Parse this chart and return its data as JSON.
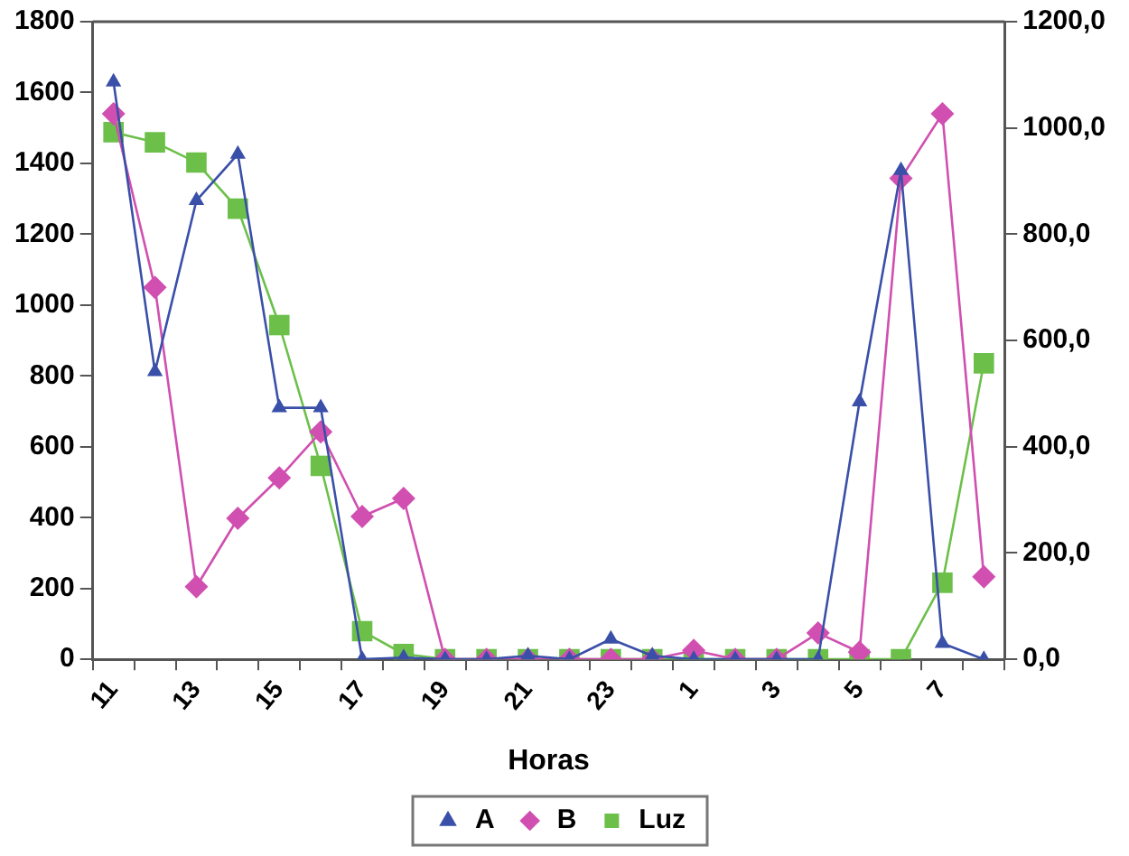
{
  "chart_data": {
    "type": "line",
    "xlabel": "Horas",
    "categories": [
      "11",
      null,
      "13",
      null,
      "15",
      null,
      "17",
      null,
      "19",
      null,
      "21",
      null,
      "23",
      null,
      "1",
      null,
      "3",
      null,
      "5",
      null,
      "7",
      null
    ],
    "series": [
      {
        "name": "A",
        "color": "#3a4fa8",
        "marker": "triangle",
        "values": [
          1630,
          812,
          1295,
          1426,
          710,
          710,
          0,
          5,
          0,
          0,
          10,
          0,
          57,
          10,
          0,
          0,
          0,
          0,
          727,
          1380,
          45,
          0
        ]
      },
      {
        "name": "B",
        "color": "#d04fb0",
        "marker": "diamond",
        "values": [
          1540,
          1050,
          205,
          398,
          512,
          642,
          403,
          454,
          0,
          0,
          0,
          0,
          0,
          0,
          25,
          0,
          0,
          74,
          20,
          1358,
          1540,
          233
        ]
      },
      {
        "name": "Luz",
        "color": "#6cc04a",
        "marker": "square",
        "axis": "y2",
        "values": [
          992,
          973,
          935,
          848,
          629,
          364,
          53,
          10,
          0,
          0,
          0,
          0,
          0,
          0,
          0,
          0,
          0,
          0,
          0,
          0,
          144,
          557
        ]
      }
    ],
    "ylim": [
      0,
      1800
    ],
    "yticks": [
      0,
      200,
      400,
      600,
      800,
      1000,
      1200,
      1400,
      1600,
      1800
    ],
    "y2lim": [
      0,
      1200
    ],
    "y2ticks": [
      {
        "value": 0,
        "label": "0,0"
      },
      {
        "value": 200,
        "label": "200,0"
      },
      {
        "value": 400,
        "label": "400,0"
      },
      {
        "value": 600,
        "label": "600,0"
      },
      {
        "value": 800,
        "label": "800,0"
      },
      {
        "value": 1000,
        "label": "1000,0"
      },
      {
        "value": 1200,
        "label": "1200,0"
      }
    ],
    "grid": false,
    "legend": "bottom",
    "line_style": "solid"
  }
}
